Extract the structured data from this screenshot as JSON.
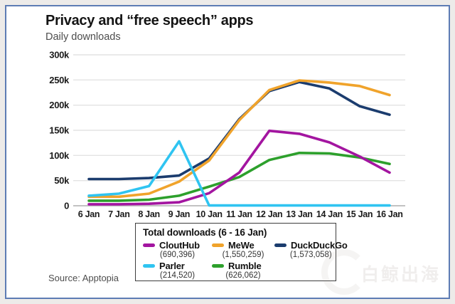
{
  "header": {
    "title": "Privacy and “free speech” apps",
    "subtitle": "Daily downloads"
  },
  "source": {
    "label": "Source: Apptopia"
  },
  "watermark": {
    "text": "白鲸出海"
  },
  "colors": {
    "clouthub": "#a315a0",
    "mewe": "#f0a32b",
    "duckduckgo": "#1b3c6e",
    "parler": "#2fc4f1",
    "rumble": "#2da02c",
    "card_border": "#5d7cb4",
    "gridline": "#e3e3e3",
    "axis_line": "#c2c2c2",
    "axis_text": "#1a1a1a"
  },
  "chart_data": {
    "type": "line",
    "title": "Privacy and “free speech” apps",
    "subtitle": "Daily downloads",
    "grid": true,
    "ylim": [
      0,
      300000
    ],
    "x_labels": [
      "6 Jan",
      "7 Jan",
      "8 Jan",
      "9 Jan",
      "10 Jan",
      "11 Jan",
      "12 Jan",
      "13 Jan",
      "14 Jan",
      "15 Jan",
      "16 Jan"
    ],
    "y_ticks": [
      {
        "label": "300k",
        "value": 300000
      },
      {
        "label": "250k",
        "value": 250000
      },
      {
        "label": "200k",
        "value": 200000
      },
      {
        "label": "150k",
        "value": 150000
      },
      {
        "label": "100k",
        "value": 100000
      },
      {
        "label": "50k",
        "value": 50000
      },
      {
        "label": "0",
        "value": 0
      }
    ],
    "series": [
      {
        "name": "DuckDuckGo",
        "color": "#1b3c6e",
        "values": [
          53000,
          53000,
          55000,
          60000,
          94000,
          172000,
          228000,
          246000,
          233000,
          198000,
          181000
        ]
      },
      {
        "name": "MeWe",
        "color": "#f0a32b",
        "values": [
          18000,
          18000,
          24000,
          48000,
          90000,
          170000,
          230000,
          249000,
          245000,
          238000,
          220000
        ]
      },
      {
        "name": "Rumble",
        "color": "#2da02c",
        "values": [
          10000,
          10000,
          12000,
          20000,
          38000,
          57000,
          91000,
          105000,
          104000,
          96000,
          83000
        ]
      },
      {
        "name": "CloutHub",
        "color": "#a315a0",
        "values": [
          3000,
          3000,
          4000,
          7000,
          25000,
          66000,
          149000,
          143000,
          126000,
          98000,
          66000
        ]
      },
      {
        "name": "Parler",
        "color": "#2fc4f1",
        "values": [
          20000,
          24000,
          39000,
          128000,
          500,
          500,
          500,
          500,
          500,
          500,
          500
        ]
      }
    ]
  },
  "legend": {
    "title": "Total downloads (6 - 16 Jan)",
    "entries": [
      {
        "name": "CloutHub",
        "total": "(690,396)",
        "color": "#a315a0"
      },
      {
        "name": "MeWe",
        "total": "(1,550,259)",
        "color": "#f0a32b"
      },
      {
        "name": "DuckDuckGo",
        "total": "(1,573,058)",
        "color": "#1b3c6e"
      },
      {
        "name": "Parler",
        "total": "(214,520)",
        "color": "#2fc4f1"
      },
      {
        "name": "Rumble",
        "total": "(626,062)",
        "color": "#2da02c"
      }
    ]
  }
}
